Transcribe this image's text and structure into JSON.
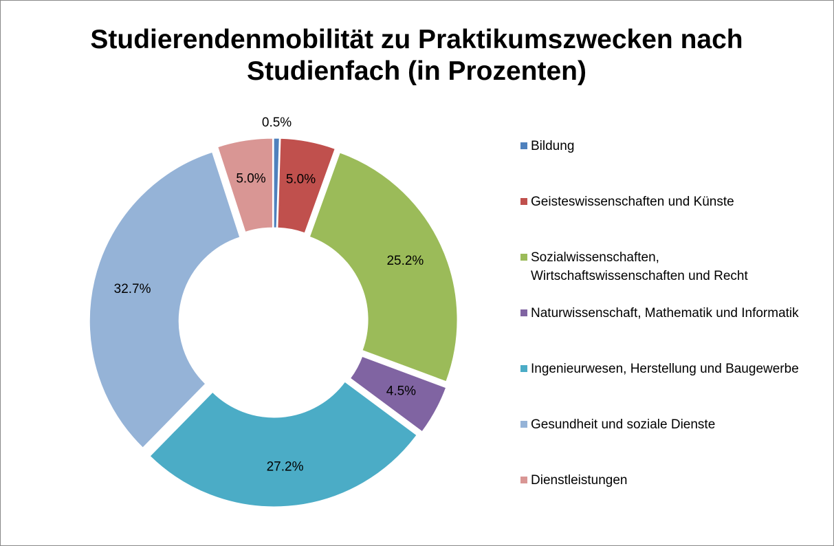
{
  "chart_data": {
    "type": "donut",
    "title": "Studierendenmobilität zu Praktikumszwecken nach Studienfach (in Prozenten)",
    "categories": [
      "Bildung",
      "Geisteswissenschaften und Künste",
      "Sozialwissenschaften, Wirtschaftswissenschaften und Recht",
      "Naturwissenschaft, Mathematik und Informatik",
      "Ingenieurwesen, Herstellung und Baugewerbe",
      "Gesundheit und soziale Dienste",
      "Dienstleistungen"
    ],
    "values": [
      0.5,
      5.0,
      25.2,
      4.5,
      27.2,
      32.7,
      5.0
    ],
    "value_labels": [
      "0.5%",
      "5.0%",
      "25.2%",
      "4.5%",
      "27.2%",
      "32.7%",
      "5.0%"
    ],
    "colors": [
      "#4f81bd",
      "#c0504d",
      "#9bbb59",
      "#8064a2",
      "#4bacc6",
      "#95b3d7",
      "#d99694"
    ],
    "legend": "right"
  }
}
